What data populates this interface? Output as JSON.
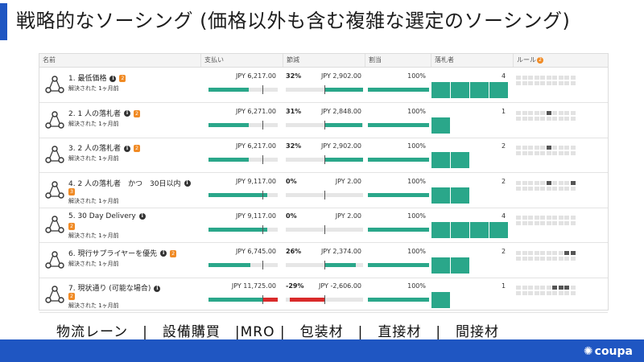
{
  "slide": {
    "title": "戦略的なソーシング (価格以外も含む複雑な選定のソーシング)",
    "footer_categories": "物流レーン　|　設備購買　|MRO |　包装材　|　直接材　|　間接材"
  },
  "brand": {
    "logo_text": "coupa",
    "accent": "#1f56c2",
    "bar_color": "#2aa78a"
  },
  "table": {
    "headers": {
      "name": "名前",
      "spend": "支払い",
      "savings": "節減",
      "allocation": "割当",
      "awardees": "落札者",
      "rules": "ルール",
      "rules_badge": "2"
    },
    "rows": [
      {
        "name": "1. 最低価格",
        "badge": "2",
        "status": "解決された 1ヶ月前",
        "spend": "JPY 6,217.00",
        "spend_fill": 0.58,
        "savings_pct": "32%",
        "savings_amt": "JPY 2,902.00",
        "savings_fill": 0.32,
        "allocation": "100%",
        "alloc_fill": 1.0,
        "awardee_count": "4",
        "awardees": 4,
        "rules_on": []
      },
      {
        "name": "2. 1 人の落札者",
        "badge": "2",
        "status": "解決された 1ヶ月前",
        "spend": "JPY 6,271.00",
        "spend_fill": 0.58,
        "savings_pct": "31%",
        "savings_amt": "JPY 2,848.00",
        "savings_fill": 0.31,
        "allocation": "100%",
        "alloc_fill": 1.0,
        "awardee_count": "1",
        "awardees": 1,
        "rules_on": [
          5
        ]
      },
      {
        "name": "3. 2 人の落札者",
        "badge": "2",
        "status": "解決された 1ヶ月前",
        "spend": "JPY 6,217.00",
        "spend_fill": 0.58,
        "savings_pct": "32%",
        "savings_amt": "JPY 2,902.00",
        "savings_fill": 0.32,
        "allocation": "100%",
        "alloc_fill": 1.0,
        "awardee_count": "2",
        "awardees": 2,
        "rules_on": [
          5
        ]
      },
      {
        "name": "4. 2 人の落札者　かつ　30日以内",
        "badge": "3",
        "status": "解決された 1ヶ月前",
        "spend": "JPY 9,117.00",
        "spend_fill": 0.85,
        "savings_pct": "0%",
        "savings_amt": "JPY 2.00",
        "savings_fill": 0.0,
        "allocation": "100%",
        "alloc_fill": 1.0,
        "awardee_count": "2",
        "awardees": 2,
        "rules_on": [
          5,
          9
        ]
      },
      {
        "name": "5. 30 Day Delivery",
        "badge": "2",
        "status": "解決された 1ヶ月前",
        "spend": "JPY 9,117.00",
        "spend_fill": 0.85,
        "savings_pct": "0%",
        "savings_amt": "JPY 2.00",
        "savings_fill": 0.0,
        "allocation": "100%",
        "alloc_fill": 1.0,
        "awardee_count": "4",
        "awardees": 4,
        "rules_on": []
      },
      {
        "name": "6. 現行サプライヤーを優先",
        "badge": "2",
        "status": "解決された 1ヶ月前",
        "spend": "JPY 6,745.00",
        "spend_fill": 0.6,
        "savings_pct": "26%",
        "savings_amt": "JPY 2,374.00",
        "savings_fill": 0.26,
        "allocation": "100%",
        "alloc_fill": 1.0,
        "awardee_count": "2",
        "awardees": 2,
        "rules_on": [
          8,
          9
        ]
      },
      {
        "name": "7. 現状通り (可能な場合)",
        "badge": "2",
        "status": "解決された 1ヶ月前",
        "spend": "JPY 11,725.00",
        "spend_fill": 1.0,
        "savings_pct": "-29%",
        "savings_amt": "JPY -2,606.00",
        "savings_fill": -0.29,
        "allocation": "100%",
        "alloc_fill": 1.0,
        "awardee_count": "1",
        "awardees": 1,
        "rules_on": [
          6,
          7,
          8
        ]
      }
    ]
  }
}
